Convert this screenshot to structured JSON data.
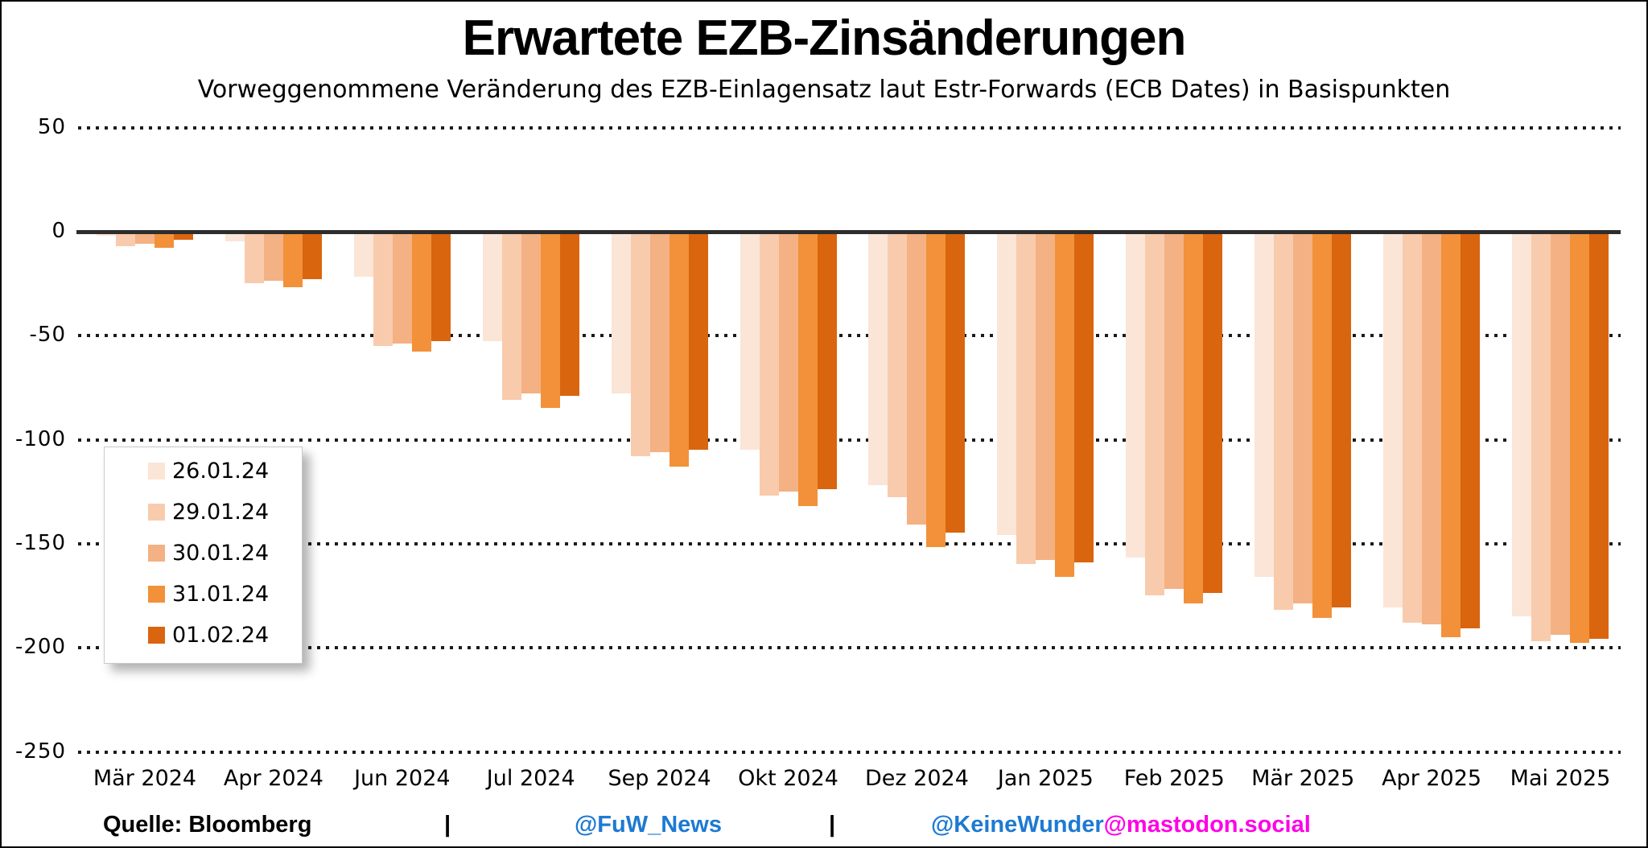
{
  "title": "Erwartete EZB-Zinsänderungen",
  "subtitle": "Vorweggenommene Veränderung des EZB-Einlagensatz laut Estr-Forwards (ECB Dates) in Basispunkten",
  "footer": {
    "source": "Quelle: Bloomberg",
    "separator1": "|",
    "twitter_handle": "@FuW_News",
    "separator2": "|",
    "mastodon_handle": "@KeineWunder",
    "mastodon_host": "@mastodon.social",
    "source_color": "#000000",
    "twitter_color": "#1d7ad2",
    "mastodon_handle_color": "#1d7ad2",
    "mastodon_host_color": "#ff00e6"
  },
  "chart_data": {
    "type": "bar",
    "title": "Erwartete EZB-Zinsänderungen",
    "subtitle": "Vorweggenommene Veränderung des EZB-Einlagensatz laut Estr-Forwards (ECB Dates) in Basispunkten",
    "unit": "Basispunkte",
    "categories": [
      "Mär 2024",
      "Apr 2024",
      "Jun 2024",
      "Jul 2024",
      "Sep 2024",
      "Okt 2024",
      "Dez 2024",
      "Jan 2025",
      "Feb 2025",
      "Mär 2025",
      "Apr 2025",
      "Mai 2025"
    ],
    "series": [
      {
        "name": "26.01.24",
        "color": "#fbe5d6",
        "values": [
          -1,
          -4,
          -21,
          -52,
          -77,
          -104,
          -121,
          -145,
          -156,
          -165,
          -180,
          -184
        ]
      },
      {
        "name": "29.01.24",
        "color": "#f8cbad",
        "values": [
          -6,
          -24,
          -54,
          -80,
          -107,
          -126,
          -127,
          -159,
          -174,
          -181,
          -187,
          -196
        ]
      },
      {
        "name": "30.01.24",
        "color": "#f4b183",
        "values": [
          -5,
          -23,
          -53,
          -77,
          -105,
          -124,
          -140,
          -157,
          -171,
          -178,
          -188,
          -193
        ]
      },
      {
        "name": "31.01.24",
        "color": "#f2913a",
        "values": [
          -7,
          -26,
          -57,
          -84,
          -112,
          -131,
          -151,
          -165,
          -178,
          -185,
          -194,
          -197
        ]
      },
      {
        "name": "01.02.24",
        "color": "#d9650f",
        "values": [
          -3,
          -22,
          -52,
          -78,
          -104,
          -123,
          -144,
          -158,
          -173,
          -180,
          -190,
          -195
        ]
      }
    ],
    "yticks": [
      50,
      0,
      -50,
      -100,
      -150,
      -200,
      -250
    ],
    "ylim": [
      -250,
      50
    ],
    "grid": "horizontal-dotted",
    "baseline_color": "#2d2d2d",
    "legend_position": "inside-upper-left"
  }
}
